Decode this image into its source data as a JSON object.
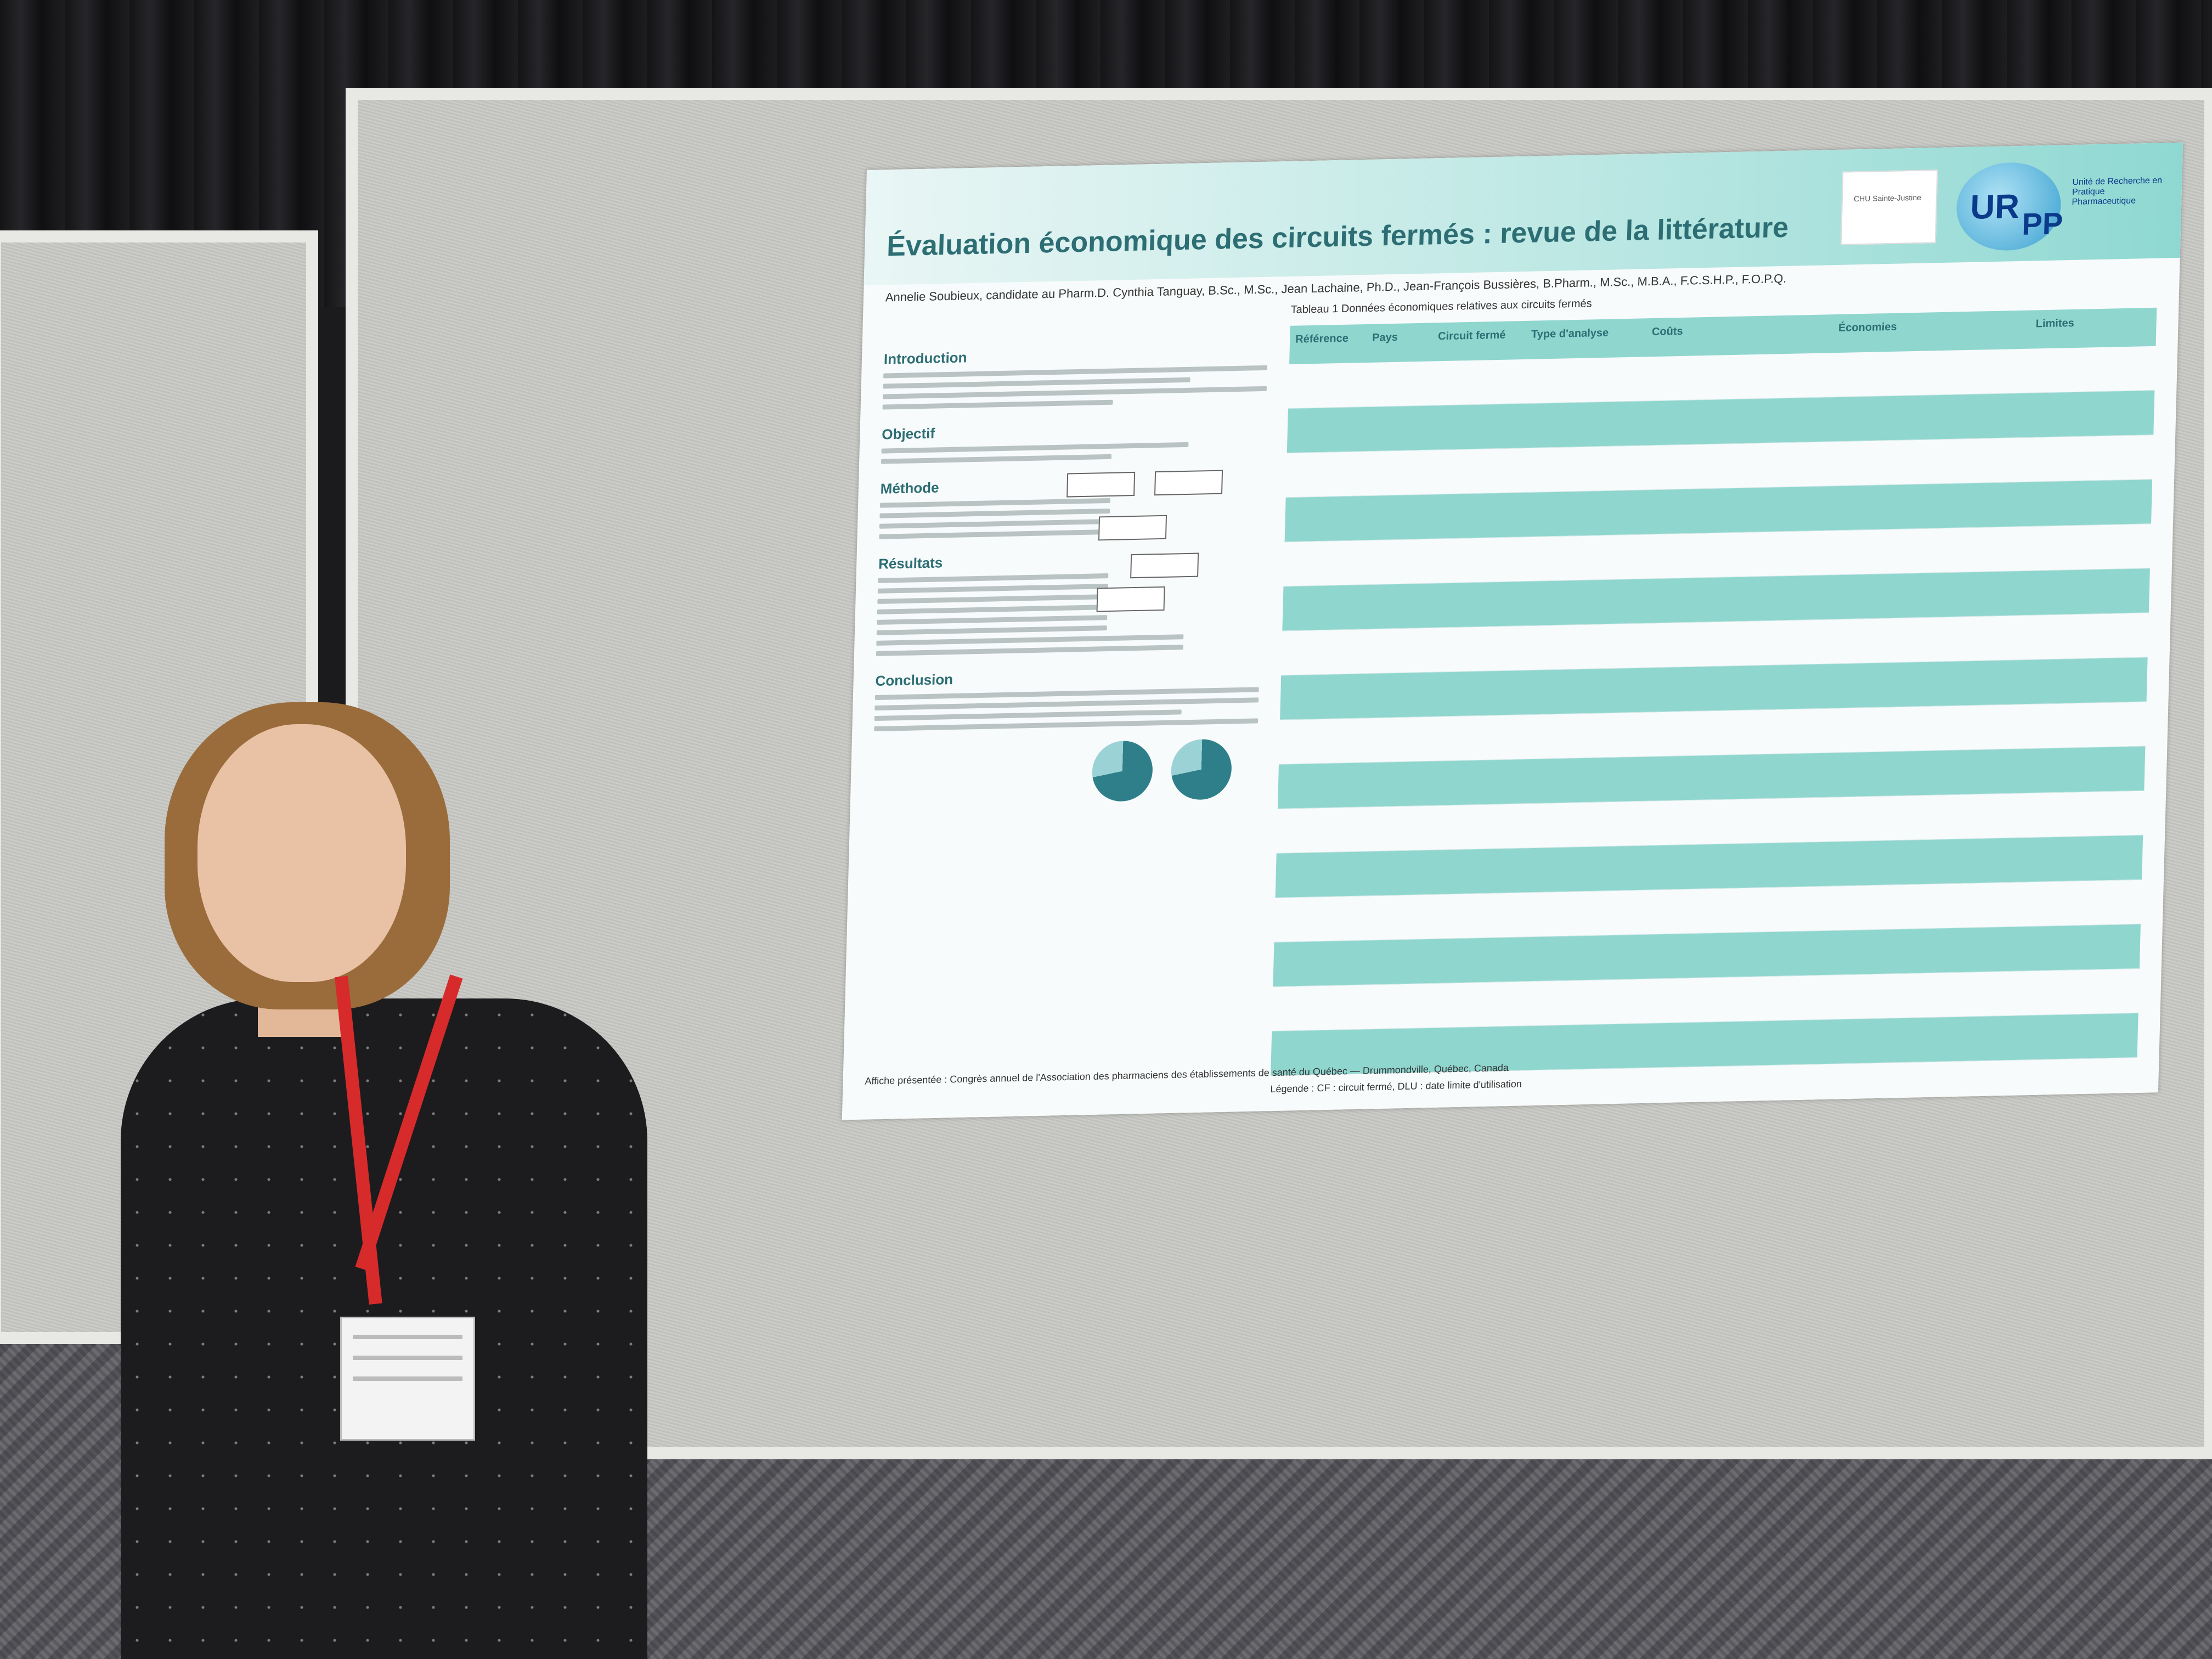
{
  "scene": {
    "description_kind": "photo",
    "poster": {
      "title": "Évaluation économique des circuits fermés : revue de la littérature",
      "authors": "Annelie Soubieux, candidate au Pharm.D. Cynthia Tanguay, B.Sc., M.Sc., Jean Lachaine, Ph.D., Jean-François Bussières, B.Pharm., M.Sc., M.B.A., F.C.S.H.P., F.O.P.Q.",
      "logo_urpp": "UR",
      "logo_pp": "PP",
      "logo_text": "Unité de Recherche en Pratique Pharmaceutique",
      "logo_chu": "CHU Sainte-Justine",
      "sections": [
        "Introduction",
        "Objectif",
        "Méthode",
        "Résultats",
        "Conclusion"
      ],
      "table_caption": "Tableau 1 Données économiques relatives aux circuits fermés",
      "table_headers": [
        "Référence",
        "Pays",
        "Circuit fermé",
        "Type d'analyse",
        "Coûts",
        "Économies",
        "Limites"
      ],
      "legend": "Légende : CF : circuit fermé, DLU : date limite d'utilisation",
      "footer": "Affiche présentée : Congrès annuel de l'Association des pharmaciens des établissements de santé du Québec — Drummondville, Québec, Canada"
    }
  }
}
